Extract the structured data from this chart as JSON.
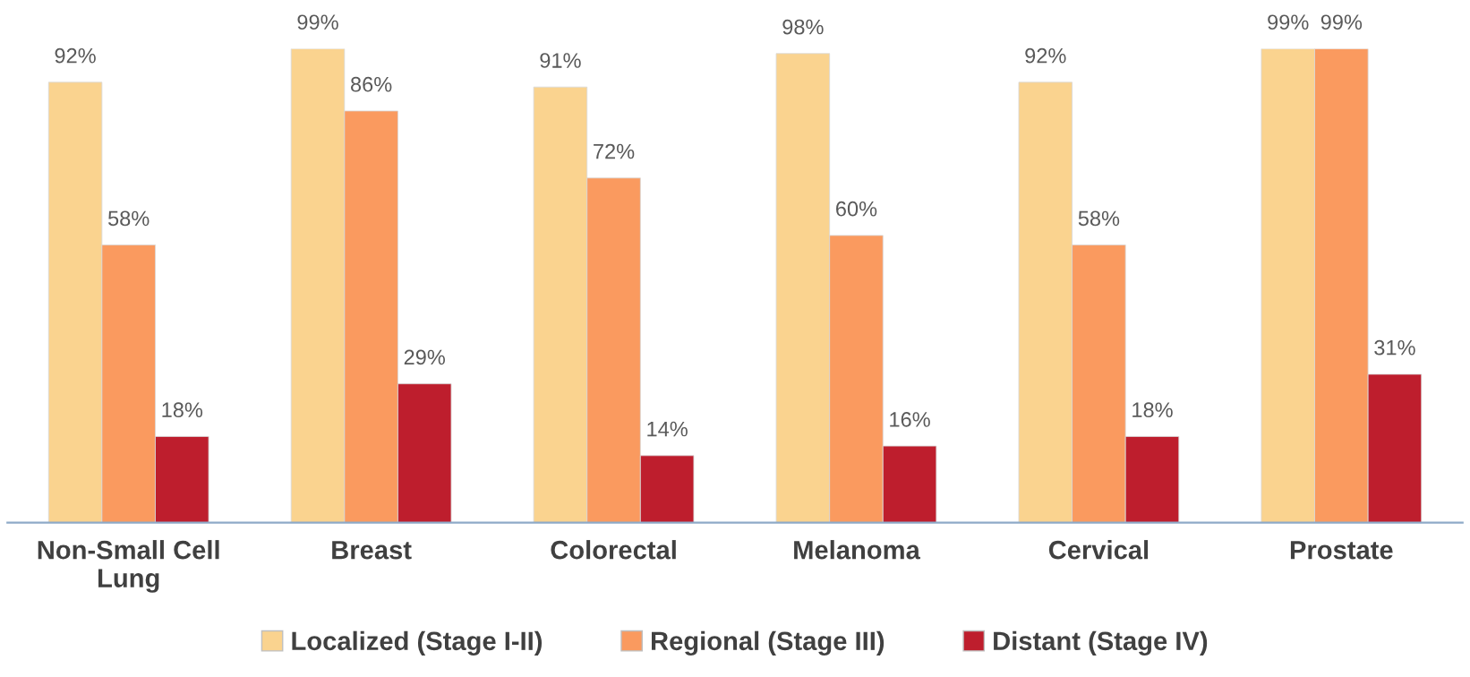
{
  "chart_data": {
    "type": "bar",
    "categories": [
      "Non-Small Cell\nLung",
      "Breast",
      "Colorectal",
      "Melanoma",
      "Cervical",
      "Prostate"
    ],
    "series": [
      {
        "name": "Localized (Stage I-II)",
        "color": "#fad38f",
        "values": [
          92,
          99,
          91,
          98,
          92,
          99
        ],
        "value_labels": [
          "92%",
          "99%",
          "91%",
          "98%",
          "92%",
          "99%"
        ]
      },
      {
        "name": "Regional (Stage III)",
        "color": "#fa9a5f",
        "values": [
          58,
          86,
          72,
          60,
          58,
          99
        ],
        "value_labels": [
          "58%",
          "86%",
          "72%",
          "60%",
          "58%",
          "99%"
        ]
      },
      {
        "name": "Distant (Stage IV)",
        "color": "#be1e2d",
        "values": [
          18,
          29,
          14,
          16,
          18,
          31
        ],
        "value_labels": [
          "18%",
          "29%",
          "14%",
          "16%",
          "18%",
          "31%"
        ]
      }
    ],
    "legend": "bottom",
    "grid": false
  }
}
